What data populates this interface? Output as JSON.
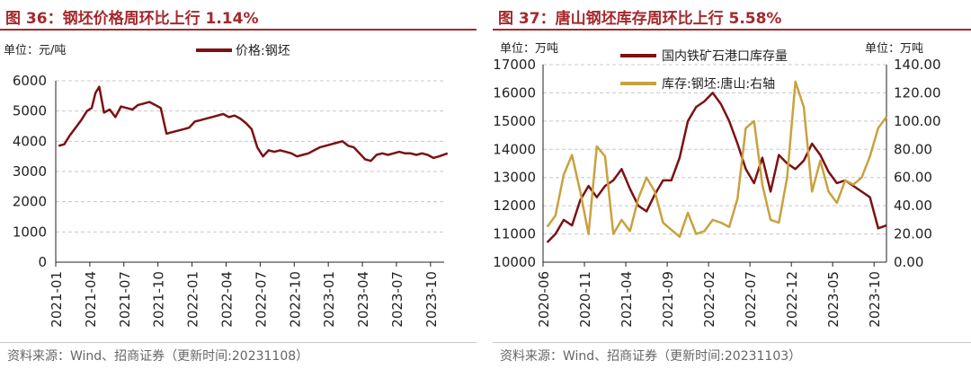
{
  "chart_data": [
    {
      "type": "line",
      "title": "图 36：钢坯价格周环比上行 1.14%",
      "unit_label": "单位：元/吨",
      "legend": [
        "价格:钢坯"
      ],
      "legend_placement": "top",
      "ylim": [
        0,
        6000
      ],
      "y_ticks": [
        "0",
        "1000",
        "2000",
        "3000",
        "4000",
        "5000",
        "6000"
      ],
      "x_ticks": [
        "2021-01",
        "2021-04",
        "2021-07",
        "2021-10",
        "2022-01",
        "2022-04",
        "2022-07",
        "2022-10",
        "2023-01",
        "2023-04",
        "2023-07",
        "2023-10"
      ],
      "grid": true,
      "series": [
        {
          "name": "价格:钢坯",
          "color": "#7b1113",
          "x": [
            "2021-01",
            "2021-01",
            "2021-02",
            "2021-02",
            "2021-03",
            "2021-03",
            "2021-04",
            "2021-04",
            "2021-04",
            "2021-05",
            "2021-05",
            "2021-06",
            "2021-06",
            "2021-07",
            "2021-07",
            "2021-08",
            "2021-08",
            "2021-09",
            "2021-09",
            "2021-10",
            "2021-10",
            "2021-11",
            "2021-11",
            "2021-12",
            "2021-12",
            "2022-01",
            "2022-01",
            "2022-02",
            "2022-02",
            "2022-03",
            "2022-03",
            "2022-04",
            "2022-04",
            "2022-05",
            "2022-05",
            "2022-06",
            "2022-06",
            "2022-07",
            "2022-07",
            "2022-08",
            "2022-08",
            "2022-09",
            "2022-09",
            "2022-10",
            "2022-10",
            "2022-11",
            "2022-11",
            "2022-12",
            "2022-12",
            "2023-01",
            "2023-01",
            "2023-02",
            "2023-02",
            "2023-03",
            "2023-03",
            "2023-04",
            "2023-04",
            "2023-05",
            "2023-05",
            "2023-06",
            "2023-06",
            "2023-07",
            "2023-07",
            "2023-08",
            "2023-08",
            "2023-09",
            "2023-09",
            "2023-10",
            "2023-10",
            "2023-11"
          ],
          "values": [
            3850,
            3900,
            4200,
            4450,
            4700,
            5000,
            5100,
            5600,
            5800,
            4950,
            5050,
            4800,
            5150,
            5100,
            5050,
            5200,
            5250,
            5300,
            5200,
            5100,
            4250,
            4300,
            4350,
            4400,
            4450,
            4650,
            4700,
            4750,
            4800,
            4850,
            4900,
            4800,
            4850,
            4750,
            4600,
            4400,
            3800,
            3500,
            3700,
            3650,
            3700,
            3650,
            3600,
            3500,
            3550,
            3600,
            3700,
            3800,
            3850,
            3900,
            3950,
            4000,
            3850,
            3800,
            3600,
            3400,
            3350,
            3550,
            3600,
            3550,
            3600,
            3650,
            3600,
            3600,
            3550,
            3600,
            3550,
            3450,
            3500,
            3600
          ]
        }
      ],
      "source": "资料来源：Wind、招商证券（更新时间:20231108）"
    },
    {
      "type": "line",
      "title": "图 37：唐山钢坯库存周环比上行 5.58%",
      "unit_left": "单位：万吨",
      "unit_right": "单位：万吨",
      "legend": [
        "国内铁矿石港口库存量",
        "库存:钢坯:唐山:右轴"
      ],
      "legend_placement": "top",
      "ylim_left": [
        10000,
        17000
      ],
      "ylim_right": [
        0,
        140
      ],
      "y_ticks_left": [
        "10000",
        "11000",
        "12000",
        "13000",
        "14000",
        "15000",
        "16000",
        "17000"
      ],
      "y_ticks_right": [
        "0.00",
        "20.00",
        "40.00",
        "60.00",
        "80.00",
        "100.00",
        "120.00",
        "140.00"
      ],
      "x_ticks": [
        "2020-06",
        "2020-11",
        "2021-04",
        "2021-09",
        "2022-02",
        "2022-07",
        "2022-12",
        "2023-05",
        "2023-10"
      ],
      "grid": true,
      "series": [
        {
          "name": "国内铁矿石港口库存量",
          "axis": "left",
          "color": "#7b1113",
          "x": [
            "2020-06",
            "2020-07",
            "2020-08",
            "2020-09",
            "2020-10",
            "2020-11",
            "2020-12",
            "2021-01",
            "2021-02",
            "2021-03",
            "2021-04",
            "2021-05",
            "2021-06",
            "2021-07",
            "2021-08",
            "2021-09",
            "2021-10",
            "2021-11",
            "2021-12",
            "2022-01",
            "2022-02",
            "2022-03",
            "2022-04",
            "2022-05",
            "2022-06",
            "2022-07",
            "2022-08",
            "2022-09",
            "2022-10",
            "2022-11",
            "2022-12",
            "2023-01",
            "2023-02",
            "2023-03",
            "2023-04",
            "2023-05",
            "2023-06",
            "2023-07",
            "2023-08",
            "2023-09",
            "2023-10",
            "2023-11"
          ],
          "values": [
            10700,
            11000,
            11500,
            11300,
            12200,
            12700,
            12300,
            12700,
            12900,
            13300,
            12600,
            12000,
            11800,
            12400,
            12900,
            12900,
            13700,
            15000,
            15500,
            15700,
            16000,
            15600,
            15000,
            14200,
            13300,
            12800,
            13700,
            12500,
            13800,
            13500,
            13300,
            13600,
            14200,
            13800,
            13200,
            12800,
            12900,
            12700,
            12500,
            12300,
            11200,
            11300
          ]
        },
        {
          "name": "库存:钢坯:唐山:右轴",
          "axis": "right",
          "color": "#c9a13f",
          "x": [
            "2020-06",
            "2020-07",
            "2020-08",
            "2020-09",
            "2020-10",
            "2020-11",
            "2020-12",
            "2021-01",
            "2021-02",
            "2021-03",
            "2021-04",
            "2021-05",
            "2021-06",
            "2021-07",
            "2021-08",
            "2021-09",
            "2021-10",
            "2021-11",
            "2021-12",
            "2022-01",
            "2022-02",
            "2022-03",
            "2022-04",
            "2022-05",
            "2022-06",
            "2022-07",
            "2022-08",
            "2022-09",
            "2022-10",
            "2022-11",
            "2022-12",
            "2023-01",
            "2023-02",
            "2023-03",
            "2023-04",
            "2023-05",
            "2023-06",
            "2023-07",
            "2023-08",
            "2023-09",
            "2023-10",
            "2023-11"
          ],
          "values": [
            25,
            33,
            62,
            76,
            50,
            20,
            82,
            75,
            20,
            30,
            22,
            45,
            60,
            50,
            28,
            23,
            18,
            35,
            20,
            22,
            30,
            28,
            25,
            45,
            95,
            100,
            55,
            30,
            28,
            60,
            128,
            110,
            50,
            72,
            50,
            42,
            58,
            55,
            60,
            75,
            95,
            103
          ]
        }
      ],
      "source": "资料来源：Wind、招商证券（更新时间:20231103）"
    }
  ]
}
